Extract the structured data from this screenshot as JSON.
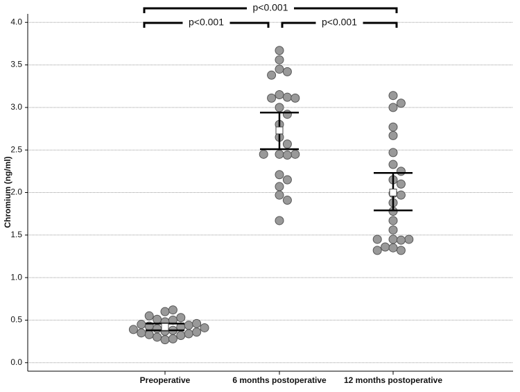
{
  "chart_data": {
    "type": "dot-plot",
    "y_label": "Chromium (ng/ml)",
    "categories": [
      "Preoperative",
      "6 months postoperative",
      "12 months postoperative"
    ],
    "points": [
      [
        0.27,
        0.28,
        0.3,
        0.32,
        0.33,
        0.34,
        0.35,
        0.36,
        0.37,
        0.38,
        0.39,
        0.4,
        0.41,
        0.42,
        0.43,
        0.44,
        0.45,
        0.46,
        0.48,
        0.5,
        0.51,
        0.53,
        0.55,
        0.6,
        0.62
      ],
      [
        3.67,
        3.56,
        3.45,
        3.42,
        3.38,
        3.15,
        3.12,
        3.11,
        3.11,
        3.0,
        2.92,
        2.8,
        2.65,
        2.57,
        2.45,
        2.45,
        2.44,
        2.45,
        2.21,
        2.15,
        2.07,
        1.97,
        1.91,
        1.67
      ],
      [
        3.14,
        3.05,
        3.0,
        2.77,
        2.67,
        2.47,
        2.33,
        2.25,
        2.15,
        2.1,
        1.99,
        1.97,
        1.88,
        1.78,
        1.67,
        1.56,
        1.45,
        1.45,
        1.44,
        1.45,
        1.36,
        1.35,
        1.32,
        1.32
      ]
    ],
    "mean": [
      0.42,
      2.73,
      2.0
    ],
    "ci_lower": [
      0.38,
      2.51,
      1.79
    ],
    "ci_upper": [
      0.46,
      2.94,
      2.23
    ],
    "point_color": "#999999",
    "comparisons": [
      "p<0.001",
      "p<0.001",
      "p<0.001"
    ],
    "ylim": [
      -0.1,
      4.1
    ],
    "yticks": [
      {
        "value": 0,
        "label": "0.0"
      },
      0.5,
      {
        "value": 1,
        "label": "1.0"
      },
      1.5,
      {
        "value": 2,
        "label": "2.0"
      },
      2.5,
      {
        "value": 3,
        "label": "3.0"
      },
      3.5,
      {
        "value": 4,
        "label": "4.0"
      }
    ],
    "grid": true
  }
}
